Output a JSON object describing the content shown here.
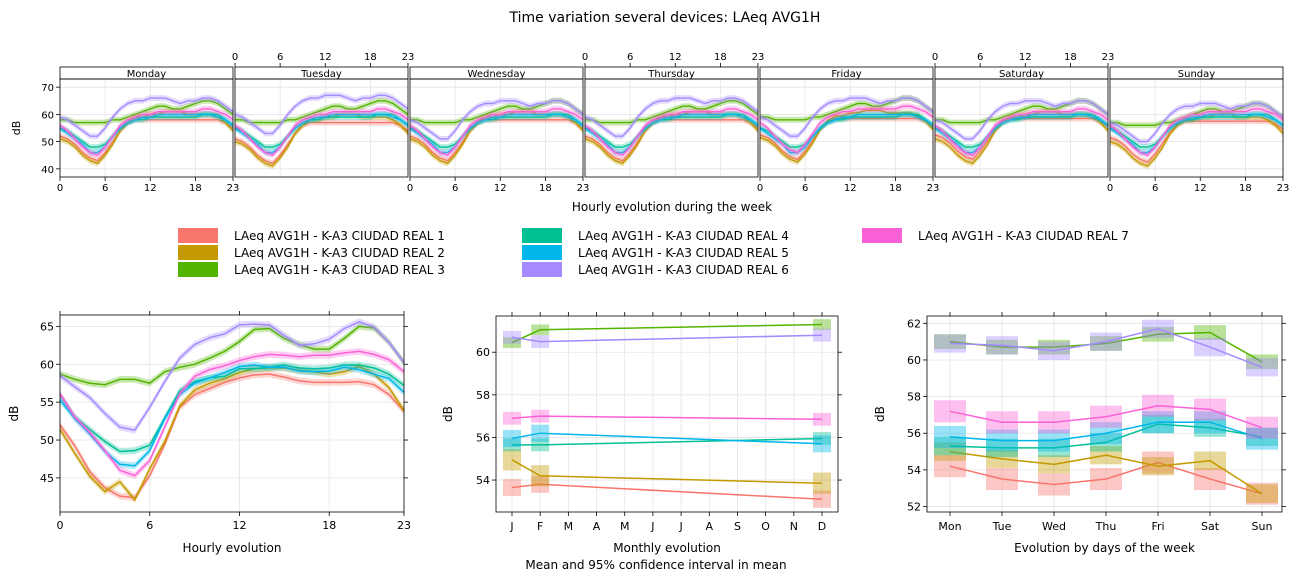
{
  "title": "Time variation several devices: LAeq AVG1H",
  "legend": [
    {
      "label": "LAeq AVG1H - K-A3 CIUDAD REAL 1",
      "color": "#F8766D"
    },
    {
      "label": "LAeq AVG1H - K-A3 CIUDAD REAL 2",
      "color": "#C49A00"
    },
    {
      "label": "LAeq AVG1H - K-A3 CIUDAD REAL 3",
      "color": "#53B400"
    },
    {
      "label": "LAeq AVG1H - K-A3 CIUDAD REAL 4",
      "color": "#00C094"
    },
    {
      "label": "LAeq AVG1H - K-A3 CIUDAD REAL 5",
      "color": "#00B6EB"
    },
    {
      "label": "LAeq AVG1H - K-A3 CIUDAD REAL 6",
      "color": "#A58AFF"
    },
    {
      "label": "LAeq AVG1H - K-A3 CIUDAD REAL 7",
      "color": "#FB61D7"
    }
  ],
  "footer": "Mean and 95% confidence interval in mean",
  "chart_data": [
    {
      "type": "line",
      "id": "weekly",
      "xlabel": "Hourly evolution during the week",
      "ylabel": "dB",
      "panels": [
        "Monday",
        "Tuesday",
        "Wednesday",
        "Thursday",
        "Friday",
        "Saturday",
        "Sunday"
      ],
      "x_ticks": [
        0,
        6,
        12,
        18,
        23
      ],
      "xlim": [
        0,
        23
      ],
      "ylim": [
        37,
        73
      ],
      "y_ticks": [
        40,
        50,
        60,
        70
      ],
      "series": [
        {
          "day_offsets": [
            0,
            -1,
            0,
            0,
            0.5,
            0.5,
            -0.5
          ],
          "values": [
            52,
            51,
            49,
            46,
            44,
            43,
            46,
            50,
            54,
            57,
            58,
            58,
            58,
            58,
            58,
            58,
            58,
            58,
            58,
            58,
            58,
            58,
            57,
            55
          ]
        },
        {
          "day_offsets": [
            0,
            -1,
            0,
            0,
            0.5,
            0,
            -1
          ],
          "values": [
            51,
            50,
            48,
            45,
            43,
            42,
            45,
            49,
            54,
            57,
            59,
            59,
            60,
            60,
            61,
            61,
            61,
            60,
            60,
            60,
            60,
            59,
            57,
            54
          ]
        },
        {
          "day_offsets": [
            0,
            0,
            0,
            0,
            1,
            0,
            -1
          ],
          "values": [
            58,
            58,
            57,
            57,
            57,
            57,
            57,
            58,
            58,
            59,
            60,
            61,
            62,
            63,
            63,
            62,
            62,
            63,
            64,
            65,
            65,
            64,
            62,
            60
          ]
        },
        {
          "day_offsets": [
            0,
            0,
            0,
            0,
            0,
            0,
            0
          ],
          "values": [
            55,
            54,
            52,
            50,
            48,
            48,
            49,
            52,
            55,
            57,
            58,
            58,
            59,
            59,
            59,
            59,
            59,
            59,
            59,
            60,
            60,
            60,
            58,
            56
          ]
        },
        {
          "day_offsets": [
            0,
            0,
            0,
            0,
            0,
            0,
            0
          ],
          "values": [
            55,
            53,
            51,
            49,
            46,
            46,
            48,
            52,
            55,
            57,
            58,
            59,
            59,
            60,
            60,
            60,
            60,
            60,
            60,
            60,
            60,
            59,
            58,
            56
          ]
        },
        {
          "day_offsets": [
            1,
            2,
            0,
            1,
            1,
            0,
            -1
          ],
          "values": [
            58,
            57,
            55,
            53,
            51,
            51,
            54,
            58,
            61,
            63,
            64,
            64,
            65,
            65,
            65,
            64,
            63,
            64,
            64,
            65,
            65,
            64,
            62,
            60
          ]
        },
        {
          "day_offsets": [
            0,
            0,
            0,
            0,
            1,
            0,
            0
          ],
          "values": [
            56,
            54,
            51,
            48,
            46,
            45,
            48,
            52,
            56,
            58,
            59,
            60,
            60,
            61,
            61,
            61,
            61,
            61,
            61,
            62,
            62,
            61,
            60,
            58
          ]
        }
      ]
    },
    {
      "type": "line",
      "id": "hourly",
      "xlabel": "Hourly evolution",
      "ylabel": "dB",
      "x": [
        0,
        1,
        2,
        3,
        4,
        5,
        6,
        7,
        8,
        9,
        10,
        11,
        12,
        13,
        14,
        15,
        16,
        17,
        18,
        19,
        20,
        21,
        22,
        23
      ],
      "x_ticks": [
        0,
        6,
        12,
        18,
        23
      ],
      "xlim": [
        0,
        23
      ],
      "ylim": [
        40.5,
        66.5
      ],
      "y_ticks": [
        45,
        50,
        55,
        60,
        65
      ],
      "series": [
        {
          "values": [
            52.0,
            49.2,
            45.8,
            43.7,
            42.6,
            42.4,
            45.3,
            49.4,
            54.3,
            56.0,
            56.8,
            57.6,
            58.2,
            58.6,
            58.7,
            58.3,
            57.8,
            57.6,
            57.6,
            57.6,
            57.7,
            57.3,
            56.0,
            53.8
          ]
        },
        {
          "values": [
            51.4,
            48.2,
            45.2,
            43.2,
            44.5,
            42.1,
            46.2,
            49.8,
            54.5,
            56.6,
            57.5,
            58.1,
            58.9,
            59.4,
            59.5,
            59.5,
            59.2,
            59.0,
            58.7,
            59.0,
            59.7,
            58.7,
            56.9,
            53.9
          ]
        },
        {
          "values": [
            58.7,
            58.0,
            57.5,
            57.3,
            58.0,
            58.0,
            57.5,
            59.0,
            59.6,
            60.0,
            60.8,
            61.7,
            63.0,
            64.6,
            64.7,
            63.4,
            62.6,
            62.0,
            62.0,
            63.4,
            65.0,
            64.8,
            62.9,
            60.2
          ]
        },
        {
          "values": [
            56.0,
            53.0,
            51.4,
            49.8,
            48.5,
            48.6,
            49.3,
            52.9,
            56.5,
            57.7,
            58.2,
            58.4,
            59.4,
            59.4,
            59.6,
            59.9,
            59.5,
            59.4,
            59.5,
            59.9,
            59.9,
            59.5,
            58.7,
            57.2
          ]
        },
        {
          "values": [
            55.3,
            52.8,
            50.8,
            48.5,
            46.8,
            46.6,
            48.6,
            52.8,
            56.0,
            57.5,
            58.2,
            58.9,
            59.7,
            59.9,
            59.6,
            59.6,
            59.1,
            59.0,
            59.1,
            59.6,
            59.3,
            58.7,
            58.1,
            56.3
          ]
        },
        {
          "values": [
            58.5,
            57.0,
            55.6,
            53.5,
            51.7,
            51.3,
            54.3,
            57.7,
            60.8,
            62.6,
            63.5,
            64.0,
            65.2,
            65.3,
            65.2,
            63.8,
            62.5,
            62.7,
            63.3,
            64.7,
            65.6,
            64.9,
            62.9,
            60.2
          ]
        },
        {
          "values": [
            56.1,
            53.0,
            51.0,
            48.6,
            46.0,
            45.3,
            47.3,
            51.7,
            56.1,
            58.4,
            59.3,
            59.8,
            60.5,
            61.0,
            61.3,
            61.2,
            61.0,
            61.2,
            61.2,
            61.5,
            61.7,
            61.3,
            60.6,
            59.0
          ]
        }
      ]
    },
    {
      "type": "line",
      "id": "monthly",
      "xlabel": "Monthly evolution",
      "ylabel": "dB",
      "categories": [
        "J",
        "F",
        "M",
        "A",
        "M",
        "J",
        "J",
        "A",
        "S",
        "O",
        "N",
        "D"
      ],
      "ylim": [
        52.5,
        61.7
      ],
      "y_ticks": [
        54,
        56,
        58,
        60
      ],
      "series": [
        {
          "points": [
            [
              0,
              53.65
            ],
            [
              1,
              53.8
            ],
            [
              11,
              53.1
            ]
          ],
          "err": 0.4
        },
        {
          "points": [
            [
              0,
              54.95
            ],
            [
              1,
              54.2
            ],
            [
              11,
              53.85
            ]
          ],
          "err": 0.5
        },
        {
          "points": [
            [
              0,
              60.45
            ],
            [
              1,
              61.05
            ],
            [
              11,
              61.3
            ]
          ],
          "err": 0.25
        },
        {
          "points": [
            [
              0,
              55.65
            ],
            [
              1,
              55.65
            ],
            [
              11,
              55.95
            ]
          ],
          "err": 0.3
        },
        {
          "points": [
            [
              0,
              55.95
            ],
            [
              1,
              56.2
            ],
            [
              11,
              55.7
            ]
          ],
          "err": 0.4
        },
        {
          "points": [
            [
              0,
              60.7
            ],
            [
              1,
              60.5
            ],
            [
              11,
              60.8
            ]
          ],
          "err": 0.3
        },
        {
          "points": [
            [
              0,
              56.9
            ],
            [
              1,
              57.0
            ],
            [
              11,
              56.85
            ]
          ],
          "err": 0.3
        }
      ]
    },
    {
      "type": "line",
      "id": "weekday",
      "xlabel": "Evolution by days of the week",
      "ylabel": "dB",
      "categories": [
        "Mon",
        "Tue",
        "Wed",
        "Thu",
        "Fri",
        "Sat",
        "Sun"
      ],
      "ylim": [
        51.7,
        62.4
      ],
      "y_ticks": [
        52,
        54,
        56,
        58,
        60,
        62
      ],
      "series": [
        {
          "values": [
            54.2,
            53.5,
            53.2,
            53.5,
            54.4,
            53.5,
            52.7
          ],
          "err": 0.6
        },
        {
          "values": [
            55.0,
            54.6,
            54.3,
            54.8,
            54.2,
            54.5,
            52.7
          ],
          "err": 0.5
        },
        {
          "values": [
            61.0,
            60.7,
            60.7,
            60.9,
            61.4,
            61.5,
            59.9
          ],
          "err": 0.4
        },
        {
          "values": [
            55.3,
            55.2,
            55.2,
            55.5,
            56.5,
            56.3,
            55.8
          ],
          "err": 0.5
        },
        {
          "values": [
            55.8,
            55.6,
            55.6,
            56.0,
            56.6,
            56.6,
            55.7
          ],
          "err": 0.6
        },
        {
          "values": [
            60.9,
            60.8,
            60.5,
            61.0,
            61.7,
            60.7,
            59.6
          ],
          "err": 0.5
        },
        {
          "values": [
            57.2,
            56.6,
            56.6,
            56.9,
            57.5,
            57.3,
            56.3
          ],
          "err": 0.6
        }
      ]
    }
  ]
}
